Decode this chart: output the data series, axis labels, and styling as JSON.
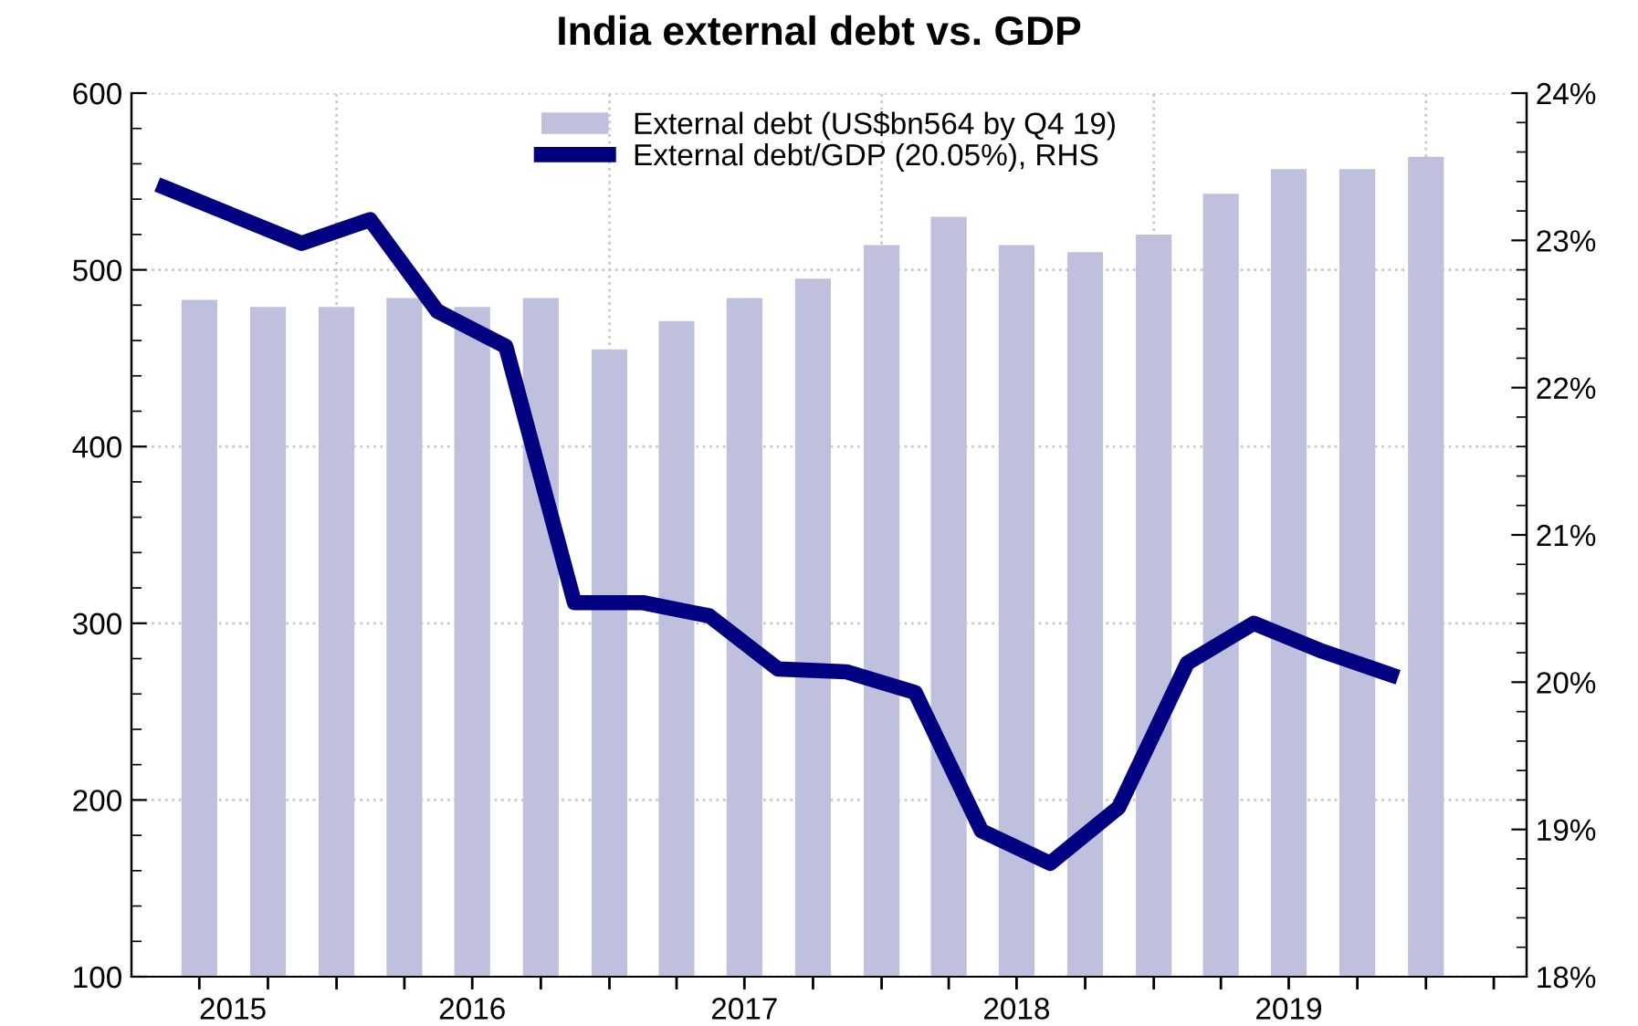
{
  "chart_data": {
    "type": "bar",
    "title": "India external debt vs. GDP",
    "x": [
      "2015-07-01",
      "2015-10-01",
      "2016-01-01",
      "2016-04-01",
      "2016-07-01",
      "2016-10-01",
      "2017-01-01",
      "2017-04-01",
      "2017-07-01",
      "2017-10-01",
      "2018-01-01",
      "2018-04-01",
      "2018-07-01",
      "2018-10-01",
      "2019-01-01",
      "2019-04-01",
      "2019-07-01",
      "2019-10-01",
      "2020-01-01"
    ],
    "series": [
      {
        "name": "External debt (US$bn564 by Q4 19)",
        "color": "#bfc0de",
        "values": [
          483,
          479,
          479,
          484,
          479,
          484,
          455,
          471,
          484,
          495,
          514,
          530,
          514,
          510,
          520,
          543,
          557,
          557,
          564
        ]
      },
      {
        "name": "External debt/GDP (20.05%), RHS",
        "type": "line",
        "axis": "y2",
        "color": "#000080",
        "x": [
          "2015-05-15",
          "2015-08-15",
          "2015-11-15",
          "2016-02-15",
          "2016-05-15",
          "2016-08-15",
          "2016-11-15",
          "2017-02-15",
          "2017-05-15",
          "2017-08-15",
          "2017-11-15",
          "2018-02-15",
          "2018-05-15",
          "2018-08-15",
          "2018-11-15",
          "2019-02-15",
          "2019-05-15",
          "2019-08-15",
          "2019-11-15"
        ],
        "values": [
          23.36,
          23.17,
          22.98,
          23.14,
          22.52,
          22.28,
          20.54,
          20.54,
          20.45,
          20.09,
          20.07,
          19.93,
          18.99,
          18.77,
          19.15,
          20.13,
          20.4,
          20.21,
          20.05
        ]
      }
    ],
    "xlim": [
      "2015-04-01",
      "2020-05-15"
    ],
    "xticks": [
      {
        "value": "2015-07-01",
        "label": null
      },
      {
        "value": "2015-08-15",
        "label": "2015"
      },
      {
        "value": "2015-10-01",
        "label": null
      },
      {
        "value": "2016-01-01",
        "label": null
      },
      {
        "value": "2016-04-01",
        "label": null
      },
      {
        "value": "2016-07-01",
        "label": "2016"
      },
      {
        "value": "2016-07-01",
        "label": null
      },
      {
        "value": "2016-10-01",
        "label": null
      },
      {
        "value": "2017-01-01",
        "label": null
      },
      {
        "value": "2017-04-01",
        "label": null
      },
      {
        "value": "2017-07-01",
        "label": "2017"
      },
      {
        "value": "2017-07-01",
        "label": null
      },
      {
        "value": "2017-10-01",
        "label": null
      },
      {
        "value": "2018-01-01",
        "label": null
      },
      {
        "value": "2018-04-01",
        "label": null
      },
      {
        "value": "2018-07-01",
        "label": "2018"
      },
      {
        "value": "2018-07-01",
        "label": null
      },
      {
        "value": "2018-10-01",
        "label": null
      },
      {
        "value": "2019-01-01",
        "label": null
      },
      {
        "value": "2019-04-01",
        "label": null
      },
      {
        "value": "2019-07-01",
        "label": "2019"
      },
      {
        "value": "2019-07-01",
        "label": null
      },
      {
        "value": "2019-10-01",
        "label": null
      },
      {
        "value": "2020-01-01",
        "label": null
      },
      {
        "value": "2020-04-01",
        "label": null
      }
    ],
    "ylim": [
      100,
      600
    ],
    "yticks": [
      100,
      {
        "value": 120,
        "label": null
      },
      {
        "value": 140,
        "label": null
      },
      {
        "value": 160,
        "label": null
      },
      {
        "value": 180,
        "label": null
      },
      200,
      {
        "value": 220,
        "label": null
      },
      {
        "value": 240,
        "label": null
      },
      {
        "value": 260,
        "label": null
      },
      {
        "value": 280,
        "label": null
      },
      300,
      {
        "value": 320,
        "label": null
      },
      {
        "value": 340,
        "label": null
      },
      {
        "value": 360,
        "label": null
      },
      {
        "value": 380,
        "label": null
      },
      400,
      {
        "value": 420,
        "label": null
      },
      {
        "value": 440,
        "label": null
      },
      {
        "value": 460,
        "label": null
      },
      {
        "value": 480,
        "label": null
      },
      500,
      {
        "value": 520,
        "label": null
      },
      {
        "value": 540,
        "label": null
      },
      {
        "value": 560,
        "label": null
      },
      {
        "value": 580,
        "label": null
      },
      600
    ],
    "y2lim": [
      18,
      24
    ],
    "y2ticks": [
      {
        "value": 18,
        "label": "18%"
      },
      {
        "value": 18.2,
        "label": null
      },
      {
        "value": 18.4,
        "label": null
      },
      {
        "value": 18.6,
        "label": null
      },
      {
        "value": 18.8,
        "label": null
      },
      {
        "value": 19,
        "label": "19%"
      },
      {
        "value": 19.2,
        "label": null
      },
      {
        "value": 19.4,
        "label": null
      },
      {
        "value": 19.6,
        "label": null
      },
      {
        "value": 19.8,
        "label": null
      },
      {
        "value": 20,
        "label": "20%"
      },
      {
        "value": 20.2,
        "label": null
      },
      {
        "value": 20.4,
        "label": null
      },
      {
        "value": 20.6,
        "label": null
      },
      {
        "value": 20.8,
        "label": null
      },
      {
        "value": 21,
        "label": "21%"
      },
      {
        "value": 21.2,
        "label": null
      },
      {
        "value": 21.4,
        "label": null
      },
      {
        "value": 21.6,
        "label": null
      },
      {
        "value": 21.8,
        "label": null
      },
      {
        "value": 22,
        "label": "22%"
      },
      {
        "value": 22.2,
        "label": null
      },
      {
        "value": 22.4,
        "label": null
      },
      {
        "value": 22.6,
        "label": null
      },
      {
        "value": 22.8,
        "label": null
      },
      {
        "value": 23,
        "label": "23%"
      },
      {
        "value": 23.2,
        "label": null
      },
      {
        "value": 23.4,
        "label": null
      },
      {
        "value": 23.6,
        "label": null
      },
      {
        "value": 23.8,
        "label": null
      },
      {
        "value": 24,
        "label": "24%"
      }
    ],
    "ref_lines": [
      {
        "axis": "x",
        "value": "2016-01-01",
        "color": "#c8c8c8",
        "line_style": "dotted"
      },
      {
        "axis": "x",
        "value": "2017-01-01",
        "color": "#c8c8c8",
        "line_style": "dotted"
      },
      {
        "axis": "x",
        "value": "2018-01-01",
        "color": "#c8c8c8",
        "line_style": "dotted"
      },
      {
        "axis": "x",
        "value": "2019-01-01",
        "color": "#c8c8c8",
        "line_style": "dotted"
      },
      {
        "axis": "x",
        "value": "2020-01-01",
        "color": "#c8c8c8",
        "line_style": "dotted"
      }
    ],
    "grid": "y",
    "legend": "top",
    "line_style": "solid"
  }
}
